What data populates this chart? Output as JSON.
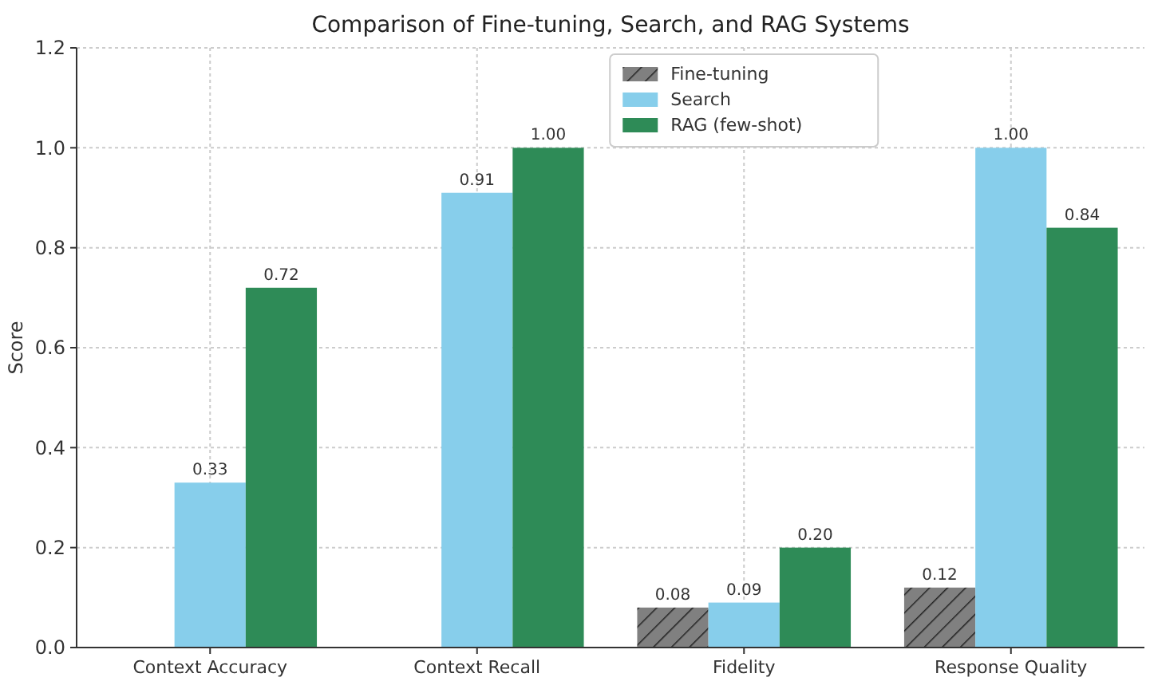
{
  "chart_data": {
    "type": "bar",
    "title": "Comparison of Fine-tuning, Search, and RAG Systems",
    "ylabel": "Score",
    "categories": [
      "Context Accuracy",
      "Context Recall",
      "Fidelity",
      "Response Quality"
    ],
    "series": [
      {
        "name": "Fine-tuning",
        "color": "#808080",
        "values": [
          null,
          null,
          0.08,
          0.12
        ],
        "value_labels": [
          null,
          null,
          "0.08",
          "0.12"
        ]
      },
      {
        "name": "Search",
        "color": "#87ceeb",
        "values": [
          0.33,
          0.91,
          0.09,
          1.0
        ],
        "value_labels": [
          "0.33",
          "0.91",
          "0.09",
          "1.00"
        ]
      },
      {
        "name": "RAG (few-shot)",
        "color": "#2e8b57",
        "values": [
          0.72,
          1.0,
          0.2,
          0.84
        ],
        "value_labels": [
          "0.72",
          "1.00",
          "0.20",
          "0.84"
        ]
      }
    ],
    "ylim": [
      0,
      1.2
    ],
    "yticks": [
      {
        "value": 0,
        "label": "0.0"
      },
      {
        "value": 0.2,
        "label": "0.2"
      },
      {
        "value": 0.4,
        "label": "0.4"
      },
      {
        "value": 0.6,
        "label": "0.6"
      },
      {
        "value": 0.8,
        "label": "0.8"
      },
      {
        "value": 1.0,
        "label": "1.0"
      },
      {
        "value": 1.2,
        "label": "1.2"
      }
    ],
    "grid": true,
    "legend": "top"
  }
}
